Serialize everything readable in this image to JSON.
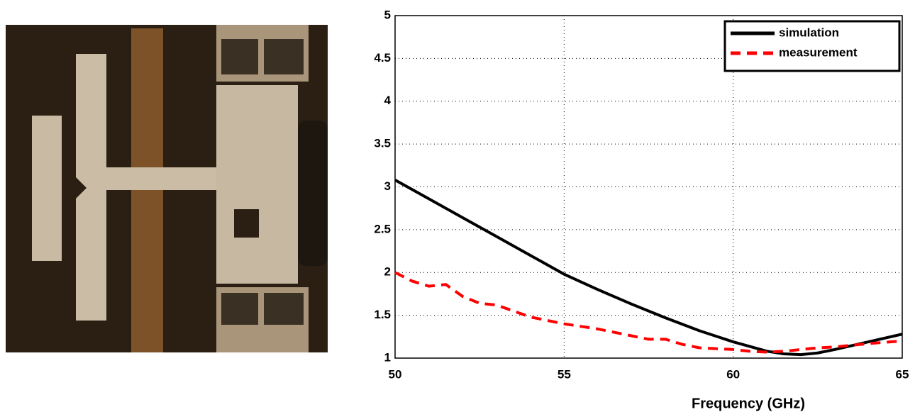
{
  "chart_data": {
    "type": "line",
    "xlabel": "Frequency (GHz)",
    "xlim": [
      50,
      65
    ],
    "xticks": [
      50,
      55,
      60,
      65
    ],
    "ylim": [
      1,
      5
    ],
    "yticks": [
      1,
      1.5,
      2,
      2.5,
      3,
      3.5,
      4,
      4.5,
      5
    ],
    "grid": true,
    "legend": "upper right",
    "series": [
      {
        "name": "simulation",
        "color": "#000000",
        "dash": "solid",
        "x": [
          50,
          51,
          52,
          53,
          54,
          55,
          56,
          57,
          58,
          59,
          60,
          61,
          61.5,
          62,
          62.5,
          63,
          64,
          65
        ],
        "values": [
          3.08,
          2.86,
          2.64,
          2.42,
          2.2,
          1.98,
          1.8,
          1.63,
          1.47,
          1.32,
          1.19,
          1.08,
          1.05,
          1.04,
          1.06,
          1.1,
          1.19,
          1.28
        ]
      },
      {
        "name": "measurement",
        "color": "#ff0000",
        "dash": "dashed",
        "x": [
          50,
          50.5,
          51,
          51.5,
          52,
          52.5,
          53,
          53.5,
          54,
          54.5,
          55,
          55.5,
          56,
          56.5,
          57,
          57.5,
          58,
          58.5,
          59,
          59.5,
          60,
          60.5,
          61,
          61.5,
          62,
          62.5,
          63,
          64,
          65
        ],
        "values": [
          2.0,
          1.9,
          1.84,
          1.86,
          1.72,
          1.64,
          1.62,
          1.55,
          1.48,
          1.44,
          1.4,
          1.37,
          1.34,
          1.3,
          1.26,
          1.22,
          1.22,
          1.16,
          1.12,
          1.11,
          1.1,
          1.08,
          1.07,
          1.08,
          1.1,
          1.12,
          1.13,
          1.17,
          1.2
        ]
      }
    ]
  }
}
